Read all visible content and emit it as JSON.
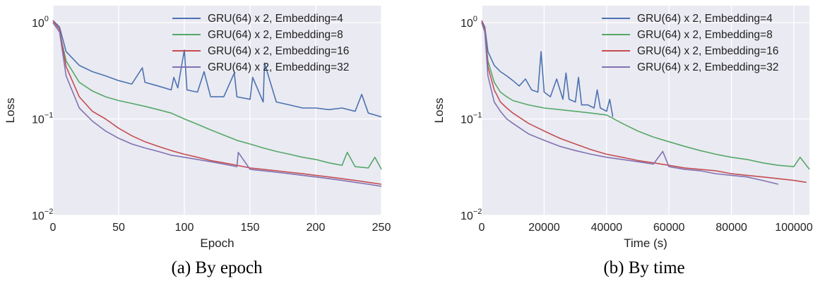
{
  "colors": {
    "background": "#EAEAF2",
    "grid": "#FFFFFF",
    "series": [
      "#4C72B0",
      "#55A868",
      "#C44E52",
      "#8172B2"
    ]
  },
  "chart_data": [
    {
      "id": "a",
      "type": "line",
      "caption": "(a) By epoch",
      "xlabel": "Epoch",
      "ylabel": "Loss",
      "xlim": [
        0,
        250
      ],
      "ylim": [
        0.01,
        1.5
      ],
      "yscale": "log",
      "grid": true,
      "legend_position": "top-right",
      "xticks": [
        {
          "value": 0,
          "label": "0"
        },
        {
          "value": 50,
          "label": "50"
        },
        {
          "value": 100,
          "label": "100"
        },
        {
          "value": 150,
          "label": "150"
        },
        {
          "value": 200,
          "label": "200"
        },
        {
          "value": 250,
          "label": "250"
        }
      ],
      "yticks": [
        {
          "value": 0.01,
          "base": "10",
          "exp": "−2"
        },
        {
          "value": 0.1,
          "base": "10",
          "exp": "−1"
        },
        {
          "value": 1,
          "base": "10",
          "exp": "0"
        }
      ],
      "series": [
        {
          "name": "GRU(64) x 2, Embedding=4",
          "x": [
            0,
            5,
            10,
            20,
            30,
            40,
            50,
            60,
            68,
            70,
            80,
            90,
            92,
            95,
            100,
            102,
            110,
            115,
            120,
            130,
            138,
            140,
            150,
            152,
            160,
            161,
            170,
            180,
            190,
            200,
            210,
            220,
            230,
            235,
            240,
            245,
            250
          ],
          "y": [
            1.05,
            0.9,
            0.5,
            0.36,
            0.31,
            0.28,
            0.25,
            0.23,
            0.34,
            0.24,
            0.22,
            0.2,
            0.27,
            0.21,
            0.52,
            0.2,
            0.19,
            0.31,
            0.17,
            0.17,
            0.3,
            0.17,
            0.16,
            0.27,
            0.15,
            0.38,
            0.15,
            0.14,
            0.13,
            0.13,
            0.125,
            0.13,
            0.12,
            0.18,
            0.115,
            0.11,
            0.105
          ]
        },
        {
          "name": "GRU(64) x 2, Embedding=8",
          "x": [
            0,
            5,
            10,
            20,
            30,
            40,
            50,
            60,
            70,
            80,
            90,
            100,
            110,
            120,
            130,
            140,
            150,
            160,
            170,
            180,
            190,
            200,
            210,
            220,
            224,
            230,
            240,
            245,
            250
          ],
          "y": [
            1.0,
            0.8,
            0.4,
            0.24,
            0.195,
            0.17,
            0.155,
            0.145,
            0.135,
            0.125,
            0.115,
            0.1,
            0.088,
            0.077,
            0.068,
            0.06,
            0.055,
            0.05,
            0.046,
            0.043,
            0.04,
            0.038,
            0.035,
            0.033,
            0.045,
            0.032,
            0.031,
            0.04,
            0.03
          ]
        },
        {
          "name": "GRU(64) x 2, Embedding=16",
          "x": [
            0,
            5,
            10,
            20,
            30,
            40,
            50,
            60,
            70,
            80,
            90,
            100,
            110,
            120,
            130,
            140,
            150,
            160,
            170,
            180,
            190,
            200,
            210,
            220,
            230,
            240,
            250
          ],
          "y": [
            1.05,
            0.85,
            0.35,
            0.17,
            0.12,
            0.1,
            0.08,
            0.067,
            0.058,
            0.052,
            0.047,
            0.043,
            0.04,
            0.037,
            0.035,
            0.033,
            0.031,
            0.03,
            0.029,
            0.028,
            0.027,
            0.026,
            0.025,
            0.024,
            0.023,
            0.022,
            0.021
          ]
        },
        {
          "name": "GRU(64) x 2, Embedding=32",
          "x": [
            0,
            5,
            10,
            20,
            30,
            40,
            50,
            60,
            70,
            80,
            90,
            100,
            110,
            120,
            130,
            140,
            141,
            150,
            160,
            170,
            180,
            190,
            200,
            210,
            220,
            230,
            240,
            250
          ],
          "y": [
            1.0,
            0.8,
            0.28,
            0.13,
            0.095,
            0.075,
            0.063,
            0.055,
            0.05,
            0.046,
            0.042,
            0.04,
            0.038,
            0.036,
            0.034,
            0.032,
            0.045,
            0.03,
            0.029,
            0.028,
            0.027,
            0.026,
            0.025,
            0.024,
            0.023,
            0.022,
            0.021,
            0.02
          ]
        }
      ]
    },
    {
      "id": "b",
      "type": "line",
      "caption": "(b) By time",
      "xlabel": "Time (s)",
      "ylabel": "Loss",
      "xlim": [
        0,
        105000
      ],
      "ylim": [
        0.01,
        1.5
      ],
      "yscale": "log",
      "grid": true,
      "legend_position": "top-right",
      "xticks": [
        {
          "value": 0,
          "label": "0"
        },
        {
          "value": 20000,
          "label": "20000"
        },
        {
          "value": 40000,
          "label": "40000"
        },
        {
          "value": 60000,
          "label": "60000"
        },
        {
          "value": 80000,
          "label": "80000"
        },
        {
          "value": 100000,
          "label": "100000"
        }
      ],
      "yticks": [
        {
          "value": 0.01,
          "base": "10",
          "exp": "−2"
        },
        {
          "value": 0.1,
          "base": "10",
          "exp": "−1"
        },
        {
          "value": 1,
          "base": "10",
          "exp": "0"
        }
      ],
      "series": [
        {
          "name": "GRU(64) x 2, Embedding=4",
          "x": [
            0,
            1000,
            2000,
            4000,
            6000,
            8000,
            10000,
            12000,
            14000,
            16000,
            18000,
            19000,
            20000,
            22000,
            24000,
            26000,
            27000,
            28000,
            30000,
            31000,
            32000,
            34000,
            36000,
            37000,
            38000,
            40000,
            41000,
            42000
          ],
          "y": [
            1.05,
            0.9,
            0.5,
            0.36,
            0.31,
            0.28,
            0.25,
            0.22,
            0.26,
            0.2,
            0.19,
            0.5,
            0.19,
            0.17,
            0.26,
            0.16,
            0.3,
            0.16,
            0.15,
            0.27,
            0.14,
            0.14,
            0.13,
            0.2,
            0.13,
            0.12,
            0.16,
            0.105
          ]
        },
        {
          "name": "GRU(64) x 2, Embedding=8",
          "x": [
            0,
            1000,
            2000,
            4000,
            6000,
            8000,
            10000,
            15000,
            20000,
            25000,
            30000,
            35000,
            40000,
            45000,
            50000,
            55000,
            60000,
            65000,
            70000,
            75000,
            80000,
            85000,
            90000,
            95000,
            100000,
            102000,
            105000
          ],
          "y": [
            1.0,
            0.8,
            0.4,
            0.24,
            0.19,
            0.17,
            0.155,
            0.14,
            0.13,
            0.125,
            0.12,
            0.115,
            0.11,
            0.09,
            0.075,
            0.065,
            0.058,
            0.052,
            0.047,
            0.043,
            0.04,
            0.038,
            0.035,
            0.033,
            0.032,
            0.04,
            0.03
          ]
        },
        {
          "name": "GRU(64) x 2, Embedding=16",
          "x": [
            0,
            1000,
            2000,
            4000,
            6000,
            8000,
            10000,
            15000,
            20000,
            25000,
            30000,
            35000,
            40000,
            45000,
            50000,
            55000,
            60000,
            65000,
            70000,
            75000,
            80000,
            85000,
            90000,
            95000,
            100000,
            104000
          ],
          "y": [
            1.05,
            0.85,
            0.35,
            0.2,
            0.15,
            0.13,
            0.115,
            0.09,
            0.075,
            0.063,
            0.055,
            0.048,
            0.043,
            0.04,
            0.037,
            0.035,
            0.033,
            0.031,
            0.03,
            0.029,
            0.027,
            0.026,
            0.025,
            0.024,
            0.023,
            0.022
          ]
        },
        {
          "name": "GRU(64) x 2, Embedding=32",
          "x": [
            0,
            1000,
            2000,
            4000,
            6000,
            8000,
            10000,
            15000,
            20000,
            25000,
            30000,
            35000,
            40000,
            45000,
            50000,
            55000,
            58000,
            60000,
            65000,
            70000,
            75000,
            80000,
            85000,
            90000,
            95000
          ],
          "y": [
            1.0,
            0.8,
            0.28,
            0.15,
            0.12,
            0.1,
            0.09,
            0.07,
            0.06,
            0.052,
            0.047,
            0.043,
            0.04,
            0.038,
            0.036,
            0.034,
            0.046,
            0.032,
            0.03,
            0.029,
            0.027,
            0.026,
            0.025,
            0.023,
            0.021
          ]
        }
      ]
    }
  ]
}
